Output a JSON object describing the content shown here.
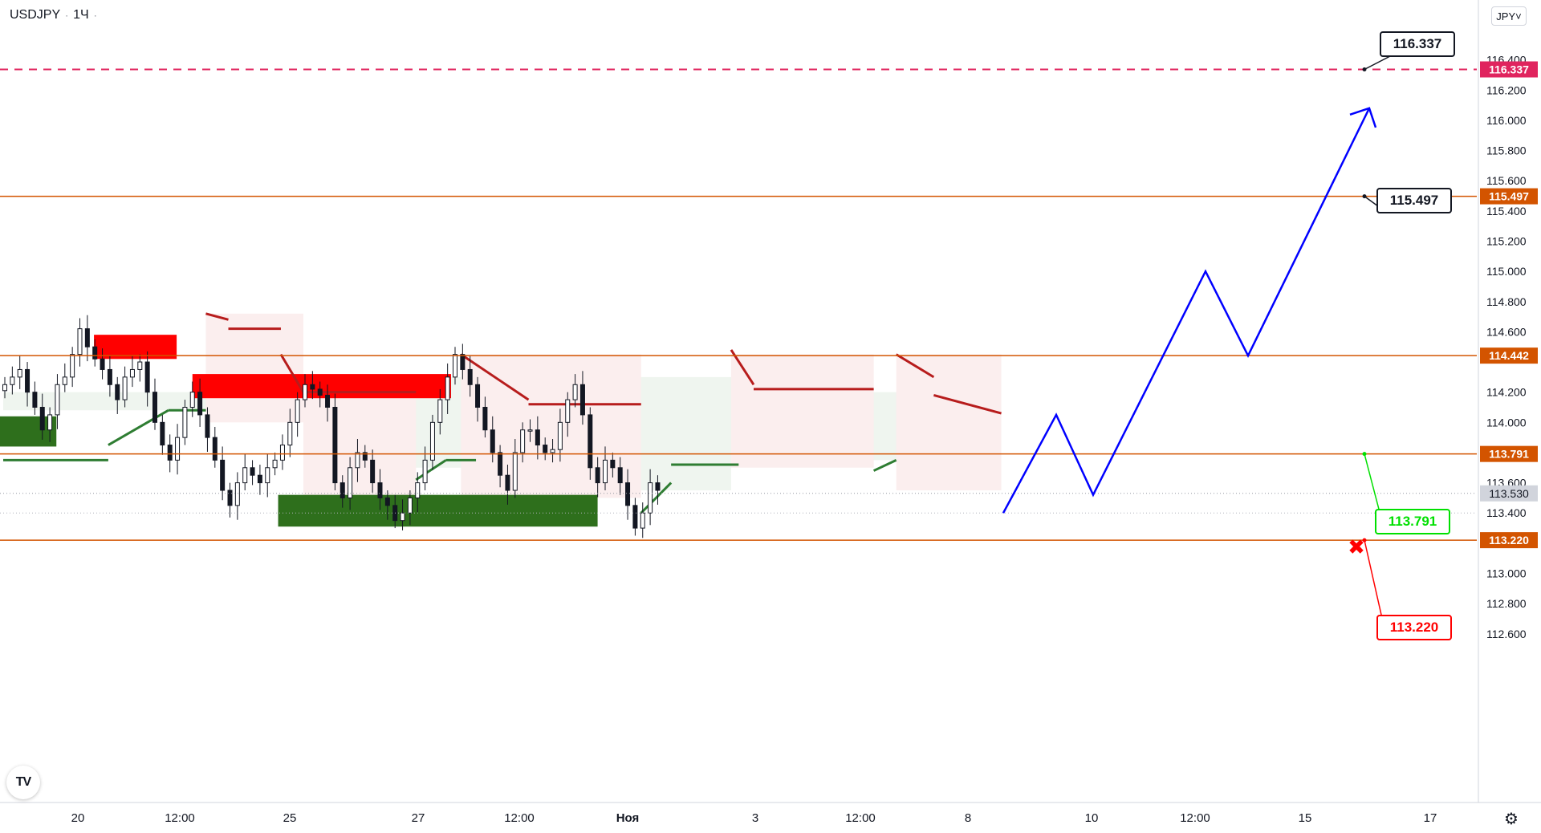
{
  "header": {
    "symbol": "USDJPY",
    "separator": "·",
    "interval": "1Ч",
    "dot": "·"
  },
  "currency_button": "JPY˅",
  "logo_text": "TV",
  "icons": {
    "settings": "gear-icon",
    "logo": "tradingview-logo-icon",
    "stop": "x-mark-icon"
  },
  "colors": {
    "bull": "#2e7d32",
    "bear": "#b71c1c",
    "supply_zone": "#ff0000",
    "demand_zone": "#2e6f1c",
    "level_line": "#d35400",
    "target_line": "#e0245e",
    "projection": "#0000ff",
    "callout_green": "#00e000",
    "callout_red": "#ff0000"
  },
  "chart_data": {
    "type": "line",
    "symbol": "USDJPY",
    "interval": "1Ч",
    "ylim": [
      112.4,
      116.5
    ],
    "price_ticks": [
      116.4,
      116.2,
      116.0,
      115.8,
      115.6,
      115.4,
      115.2,
      115.0,
      114.8,
      114.6,
      114.2,
      114.0,
      113.6,
      113.4,
      113.0,
      112.8,
      112.6
    ],
    "price_tick_labels": [
      "116.400",
      "116.200",
      "116.000",
      "115.800",
      "115.600",
      "115.400",
      "115.200",
      "115.000",
      "114.800",
      "114.600",
      "114.200",
      "114.000",
      "113.600",
      "113.400",
      "113.000",
      "112.800",
      "112.600"
    ],
    "time_ticks": [
      "20",
      "12:00",
      "25",
      "27",
      "12:00",
      "Ноя",
      "3",
      "12:00",
      "8",
      "10",
      "12:00",
      "15",
      "17"
    ],
    "current_price": 113.53,
    "current_price_label": "113.530",
    "levels": [
      {
        "value": 116.337,
        "label": "116.337",
        "style": "dashed",
        "color": "#e0245e",
        "callout": "116.337"
      },
      {
        "value": 115.497,
        "label": "115.497",
        "style": "solid",
        "color": "#d35400",
        "callout": "115.497"
      },
      {
        "value": 114.442,
        "label": "114.442",
        "style": "solid",
        "color": "#d35400"
      },
      {
        "value": 113.791,
        "label": "113.791",
        "style": "solid",
        "color": "#d35400",
        "callout": "113.791"
      },
      {
        "value": 113.22,
        "label": "113.220",
        "style": "solid",
        "color": "#d35400",
        "callout": "113.220"
      }
    ],
    "price_series": [
      114.25,
      114.3,
      114.35,
      114.2,
      114.1,
      113.95,
      114.05,
      114.25,
      114.3,
      114.45,
      114.62,
      114.5,
      114.42,
      114.35,
      114.25,
      114.15,
      114.3,
      114.35,
      114.4,
      114.2,
      114.0,
      113.85,
      113.75,
      113.9,
      114.1,
      114.2,
      114.05,
      113.9,
      113.75,
      113.55,
      113.45,
      113.6,
      113.7,
      113.65,
      113.6,
      113.7,
      113.75,
      113.85,
      114.0,
      114.15,
      114.25,
      114.22,
      114.18,
      114.1,
      113.6,
      113.5,
      113.7,
      113.8,
      113.75,
      113.6,
      113.5,
      113.45,
      113.35,
      113.4,
      113.5,
      113.6,
      113.75,
      114.0,
      114.15,
      114.3,
      114.45,
      114.35,
      114.25,
      114.1,
      113.95,
      113.8,
      113.65,
      113.55,
      113.8,
      113.95,
      113.95,
      113.85,
      113.8,
      113.82,
      114.0,
      114.15,
      114.25,
      114.05,
      113.7,
      113.6,
      113.75,
      113.7,
      113.6,
      113.45,
      113.3,
      113.4,
      113.6,
      113.55
    ],
    "projection_path": [
      [
        113.4,
        113.98
      ],
      [
        114.05,
        113.93
      ],
      [
        113.52,
        113.88
      ],
      [
        115.0,
        113.83
      ],
      [
        114.442,
        113.78
      ],
      [
        116.08,
        113.73
      ]
    ],
    "supertrend_bull": [
      {
        "x": [
          0,
          14
        ],
        "y": [
          113.75,
          113.75
        ]
      },
      {
        "x": [
          14,
          22
        ],
        "y": [
          113.85,
          114.08
        ]
      },
      {
        "x": [
          22,
          27
        ],
        "y": [
          114.08,
          114.08
        ]
      },
      {
        "x": [
          55,
          59
        ],
        "y": [
          113.62,
          113.75
        ]
      },
      {
        "x": [
          59,
          63
        ],
        "y": [
          113.75,
          113.75
        ]
      },
      {
        "x": [
          85,
          89
        ],
        "y": [
          113.4,
          113.6
        ]
      },
      {
        "x": [
          89,
          98
        ],
        "y": [
          113.72,
          113.72
        ]
      },
      {
        "x": [
          116,
          119
        ],
        "y": [
          113.68,
          113.75
        ]
      }
    ],
    "supertrend_bear": [
      {
        "x": [
          27,
          30
        ],
        "y": [
          114.72,
          114.68
        ]
      },
      {
        "x": [
          30,
          37
        ],
        "y": [
          114.62,
          114.62
        ]
      },
      {
        "x": [
          37,
          40
        ],
        "y": [
          114.45,
          114.2
        ]
      },
      {
        "x": [
          40,
          55
        ],
        "y": [
          114.2,
          114.2
        ]
      },
      {
        "x": [
          61,
          70
        ],
        "y": [
          114.45,
          114.15
        ]
      },
      {
        "x": [
          70,
          85
        ],
        "y": [
          114.12,
          114.12
        ]
      },
      {
        "x": [
          97,
          100
        ],
        "y": [
          114.48,
          114.25
        ]
      },
      {
        "x": [
          100,
          116
        ],
        "y": [
          114.22,
          114.22
        ]
      },
      {
        "x": [
          119,
          124
        ],
        "y": [
          114.45,
          114.3
        ]
      },
      {
        "x": [
          124,
          133
        ],
        "y": [
          114.18,
          114.06
        ]
      }
    ],
    "zones": [
      {
        "type": "supply",
        "price_top": 114.58,
        "price_bottom": 114.42,
        "t_start": 12.5,
        "t_end": 23.5
      },
      {
        "type": "supply",
        "price_top": 114.32,
        "price_bottom": 114.16,
        "t_start": 25.6,
        "t_end": 60
      },
      {
        "type": "demand",
        "price_top": 114.04,
        "price_bottom": 113.84,
        "t_start": 0,
        "t_end": 7.5
      },
      {
        "type": "demand",
        "price_top": 113.52,
        "price_bottom": 113.31,
        "t_start": 37,
        "t_end": 79.5
      }
    ],
    "stop_marker": {
      "value": 113.18,
      "symbol": "✖"
    }
  }
}
